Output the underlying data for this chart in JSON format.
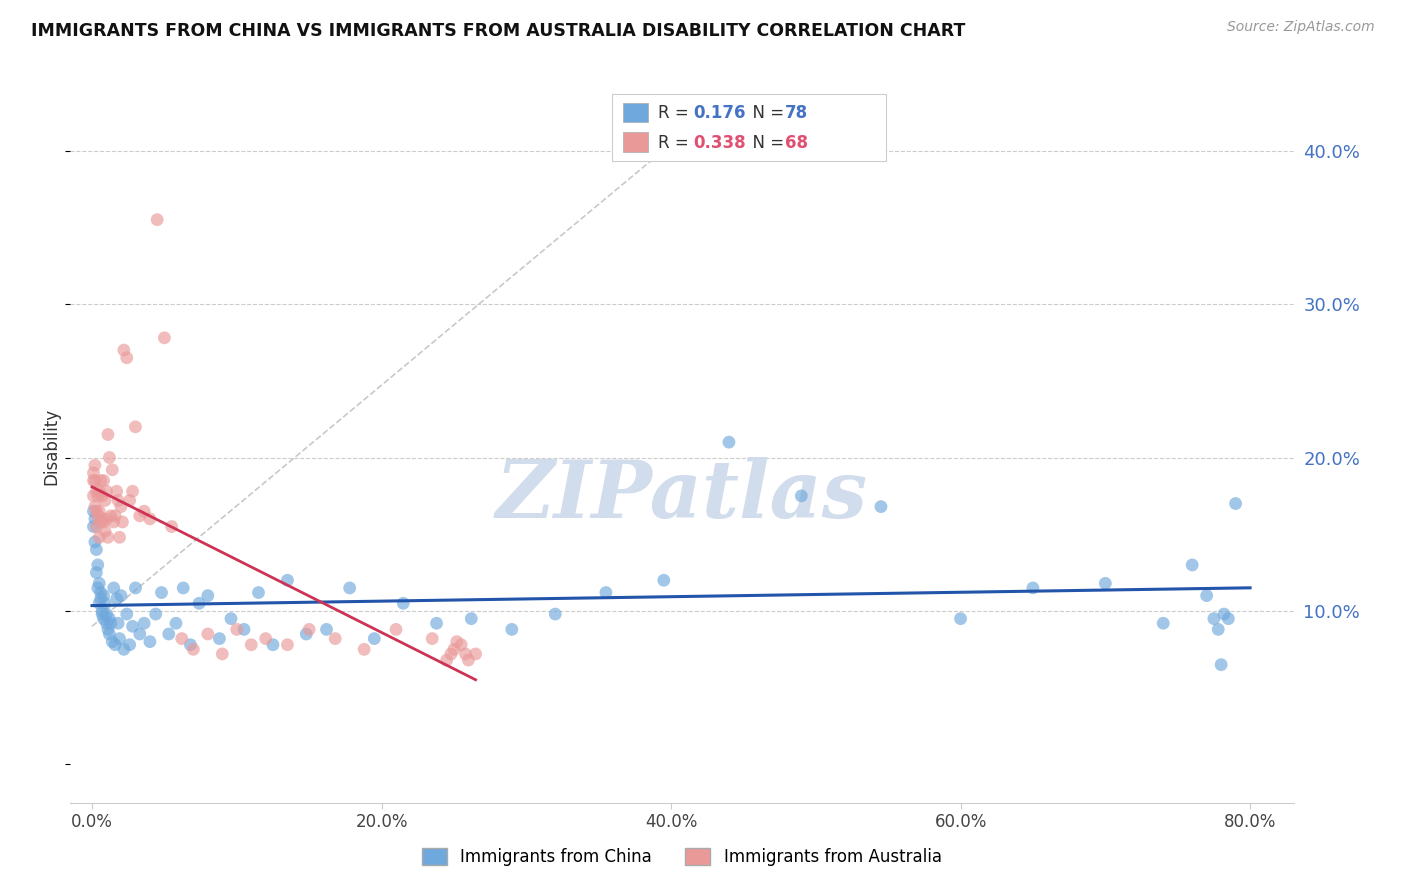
{
  "title": "IMMIGRANTS FROM CHINA VS IMMIGRANTS FROM AUSTRALIA DISABILITY CORRELATION CHART",
  "source": "Source: ZipAtlas.com",
  "ylabel": "Disability",
  "x_tick_labels": [
    "0.0%",
    "20.0%",
    "40.0%",
    "60.0%",
    "80.0%"
  ],
  "x_tick_vals": [
    0,
    0.2,
    0.4,
    0.6,
    0.8
  ],
  "y_tick_labels_right": [
    "10.0%",
    "20.0%",
    "30.0%",
    "40.0%"
  ],
  "y_tick_vals": [
    0.1,
    0.2,
    0.3,
    0.4
  ],
  "xlim": [
    -0.015,
    0.83
  ],
  "ylim": [
    -0.025,
    0.44
  ],
  "china_R": 0.176,
  "china_N": 78,
  "australia_R": 0.338,
  "australia_N": 68,
  "china_color": "#6fa8dc",
  "australia_color": "#ea9999",
  "china_line_color": "#2255aa",
  "australia_line_color": "#cc3355",
  "ref_line_color": "#bbbbbb",
  "legend_label_china": "Immigrants from China",
  "legend_label_australia": "Immigrants from Australia",
  "watermark": "ZIPatlas",
  "watermark_color": "#ccd9ea",
  "background_color": "#ffffff",
  "china_x": [
    0.001,
    0.001,
    0.002,
    0.002,
    0.003,
    0.003,
    0.004,
    0.004,
    0.005,
    0.005,
    0.006,
    0.006,
    0.007,
    0.007,
    0.008,
    0.008,
    0.009,
    0.01,
    0.01,
    0.011,
    0.012,
    0.012,
    0.013,
    0.014,
    0.015,
    0.016,
    0.017,
    0.018,
    0.019,
    0.02,
    0.022,
    0.024,
    0.026,
    0.028,
    0.03,
    0.033,
    0.036,
    0.04,
    0.044,
    0.048,
    0.053,
    0.058,
    0.063,
    0.068,
    0.074,
    0.08,
    0.088,
    0.096,
    0.105,
    0.115,
    0.125,
    0.135,
    0.148,
    0.162,
    0.178,
    0.195,
    0.215,
    0.238,
    0.262,
    0.29,
    0.32,
    0.355,
    0.395,
    0.44,
    0.49,
    0.545,
    0.6,
    0.65,
    0.7,
    0.74,
    0.76,
    0.77,
    0.775,
    0.778,
    0.78,
    0.782,
    0.785,
    0.79
  ],
  "china_y": [
    0.165,
    0.155,
    0.16,
    0.145,
    0.14,
    0.125,
    0.13,
    0.115,
    0.118,
    0.105,
    0.112,
    0.108,
    0.1,
    0.098,
    0.11,
    0.095,
    0.105,
    0.098,
    0.092,
    0.088,
    0.095,
    0.085,
    0.092,
    0.08,
    0.115,
    0.078,
    0.108,
    0.092,
    0.082,
    0.11,
    0.075,
    0.098,
    0.078,
    0.09,
    0.115,
    0.085,
    0.092,
    0.08,
    0.098,
    0.112,
    0.085,
    0.092,
    0.115,
    0.078,
    0.105,
    0.11,
    0.082,
    0.095,
    0.088,
    0.112,
    0.078,
    0.12,
    0.085,
    0.088,
    0.115,
    0.082,
    0.105,
    0.092,
    0.095,
    0.088,
    0.098,
    0.112,
    0.12,
    0.21,
    0.175,
    0.168,
    0.095,
    0.115,
    0.118,
    0.092,
    0.13,
    0.11,
    0.095,
    0.088,
    0.065,
    0.098,
    0.095,
    0.17
  ],
  "australia_x": [
    0.001,
    0.001,
    0.001,
    0.002,
    0.002,
    0.002,
    0.003,
    0.003,
    0.003,
    0.004,
    0.004,
    0.005,
    0.005,
    0.005,
    0.006,
    0.006,
    0.007,
    0.007,
    0.008,
    0.008,
    0.009,
    0.009,
    0.01,
    0.01,
    0.011,
    0.011,
    0.012,
    0.013,
    0.014,
    0.015,
    0.016,
    0.017,
    0.018,
    0.019,
    0.02,
    0.021,
    0.022,
    0.024,
    0.026,
    0.028,
    0.03,
    0.033,
    0.036,
    0.04,
    0.045,
    0.05,
    0.055,
    0.062,
    0.07,
    0.08,
    0.09,
    0.1,
    0.11,
    0.12,
    0.135,
    0.15,
    0.168,
    0.188,
    0.21,
    0.235,
    0.245,
    0.248,
    0.25,
    0.252,
    0.255,
    0.258,
    0.26,
    0.265
  ],
  "australia_y": [
    0.19,
    0.185,
    0.175,
    0.195,
    0.185,
    0.168,
    0.178,
    0.165,
    0.155,
    0.175,
    0.162,
    0.178,
    0.165,
    0.148,
    0.185,
    0.158,
    0.175,
    0.16,
    0.185,
    0.158,
    0.172,
    0.152,
    0.178,
    0.16,
    0.215,
    0.148,
    0.2,
    0.162,
    0.192,
    0.158,
    0.162,
    0.178,
    0.172,
    0.148,
    0.168,
    0.158,
    0.27,
    0.265,
    0.172,
    0.178,
    0.22,
    0.162,
    0.165,
    0.16,
    0.355,
    0.278,
    0.155,
    0.082,
    0.075,
    0.085,
    0.072,
    0.088,
    0.078,
    0.082,
    0.078,
    0.088,
    0.082,
    0.075,
    0.088,
    0.082,
    0.068,
    0.072,
    0.075,
    0.08,
    0.078,
    0.072,
    0.068,
    0.072
  ]
}
